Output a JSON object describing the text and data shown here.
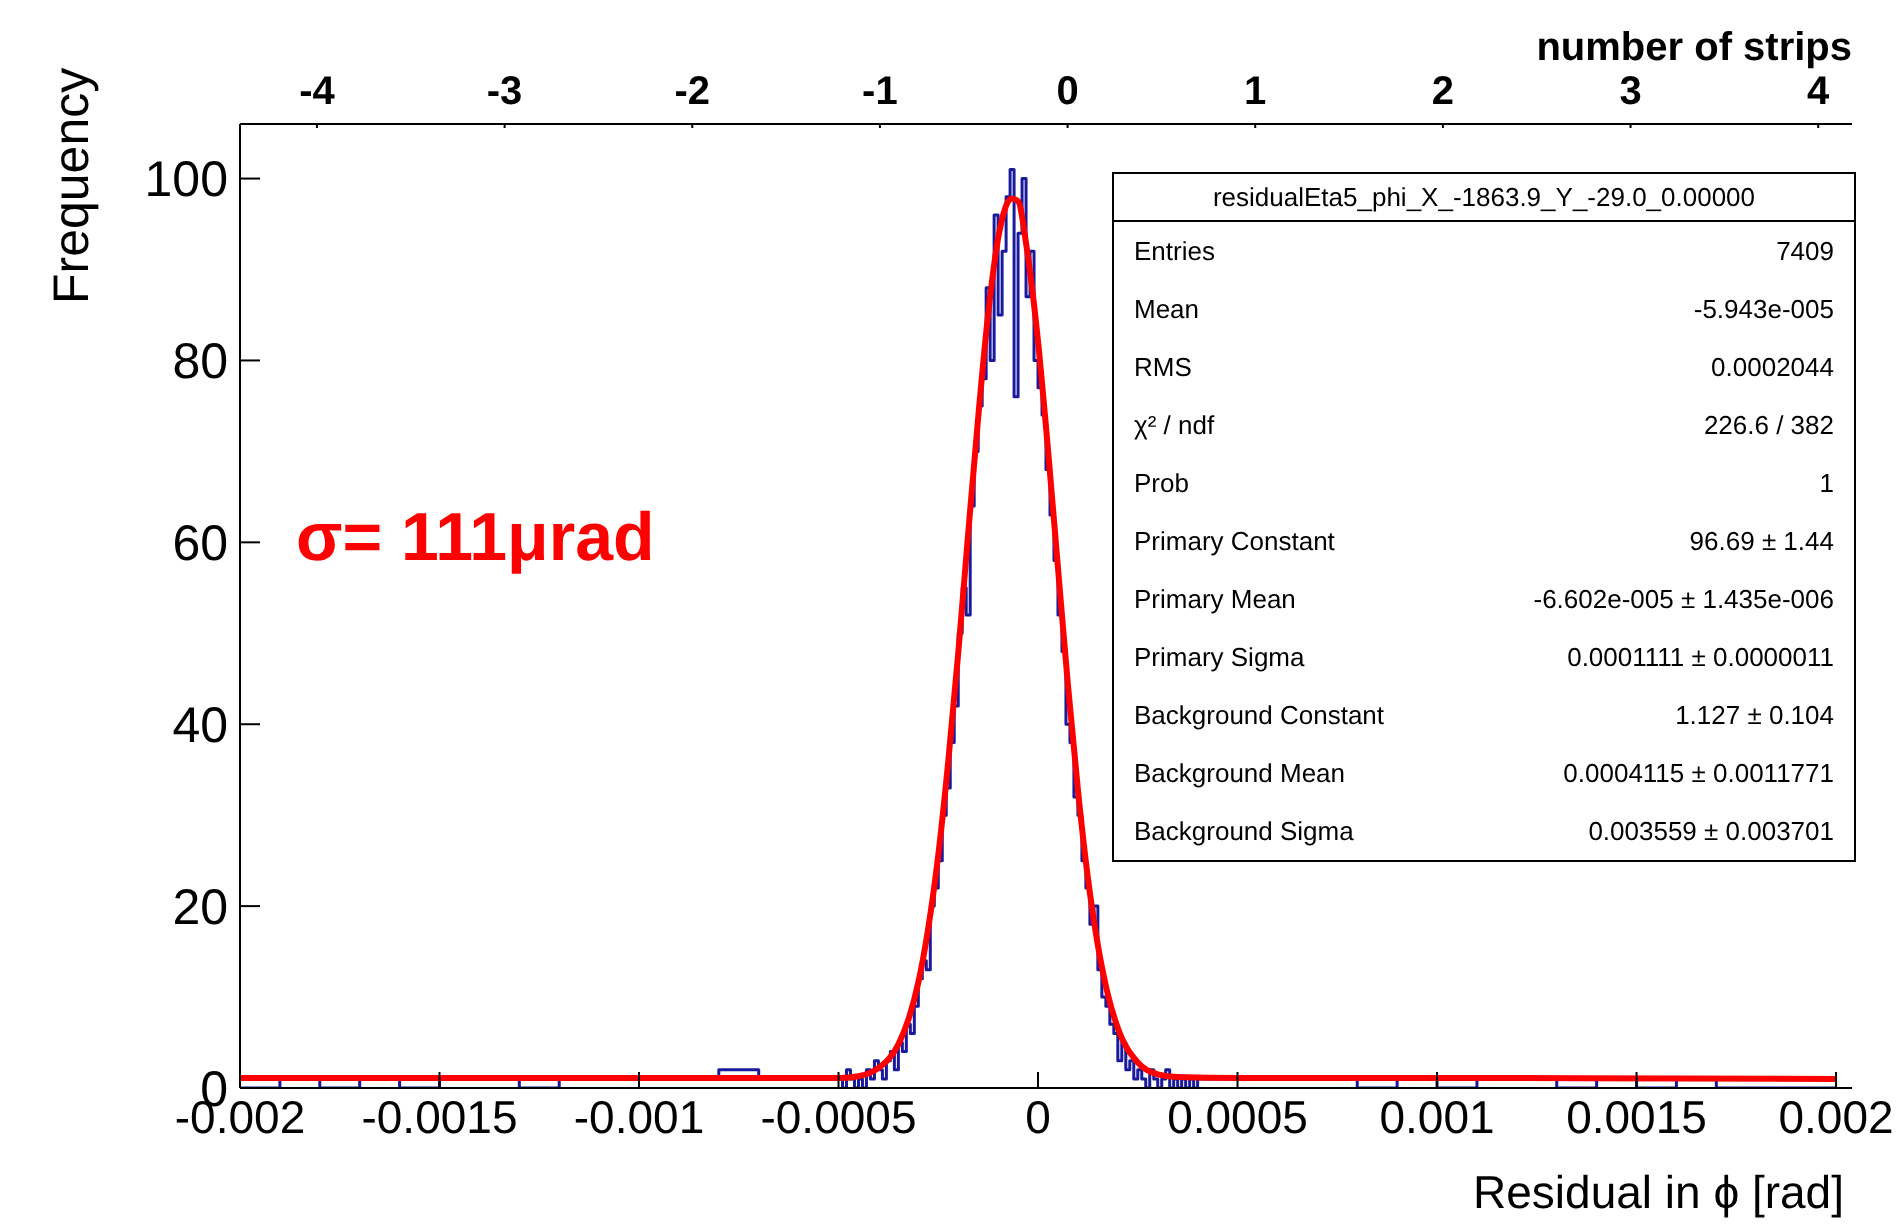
{
  "chart_data": {
    "type": "histogram",
    "xlabel": "Residual in ϕ [rad]",
    "ylabel": "Frequency",
    "x2label": "number of strips",
    "xlim": [
      -0.002,
      0.00204
    ],
    "xticks": [
      -0.002,
      -0.0015,
      -0.001,
      -0.0005,
      0,
      0.0005,
      0.001,
      0.0015,
      0.002
    ],
    "x2lim": [
      -4.41,
      4.18
    ],
    "x2ticks": [
      -4,
      -3,
      -2,
      -1,
      0,
      1,
      2,
      3,
      4
    ],
    "ylim": [
      0,
      106
    ],
    "yticks": [
      0,
      20,
      40,
      60,
      80,
      100
    ],
    "grid": false,
    "legend": false,
    "series": [
      {
        "color": "#1a1a9c",
        "bins": [
          -0.002,
          -0.0019,
          -0.0018,
          -0.0017,
          -0.0016,
          -0.0015,
          -0.0014,
          -0.0013,
          -0.0012,
          -0.0011,
          -0.001,
          -0.0009,
          -0.0008,
          -0.0007,
          -0.0006,
          -0.0005,
          -0.00049,
          -0.00048,
          -0.00047,
          -0.00046,
          -0.00045,
          -0.00044,
          -0.00043,
          -0.00042,
          -0.00041,
          -0.0004,
          -0.00039,
          -0.00038,
          -0.00037,
          -0.00036,
          -0.00035,
          -0.00034,
          -0.00033,
          -0.00032,
          -0.00031,
          -0.0003,
          -0.00029,
          -0.00028,
          -0.00027,
          -0.00026,
          -0.00025,
          -0.00024,
          -0.00023,
          -0.00022,
          -0.00021,
          -0.0002,
          -0.00019,
          -0.00018,
          -0.00017,
          -0.00016,
          -0.00015,
          -0.00014,
          -0.00013,
          -0.00012,
          -0.00011,
          -0.0001,
          -9e-05,
          -8e-05,
          -7e-05,
          -6e-05,
          -5e-05,
          -4e-05,
          -3e-05,
          -2e-05,
          -1e-05,
          0,
          1e-05,
          2e-05,
          3e-05,
          4e-05,
          5e-05,
          6e-05,
          7e-05,
          8e-05,
          9e-05,
          0.0001,
          0.00011,
          0.00012,
          0.00013,
          0.00014,
          0.00015,
          0.00016,
          0.00017,
          0.00018,
          0.00019,
          0.0002,
          0.00021,
          0.00022,
          0.00023,
          0.00024,
          0.00025,
          0.00026,
          0.00027,
          0.00028,
          0.00029,
          0.0003,
          0.00031,
          0.00032,
          0.00033,
          0.00034,
          0.00035,
          0.00036,
          0.00037,
          0.00038,
          0.00039,
          0.0004,
          0.0005,
          0.0006,
          0.0007,
          0.0008,
          0.0009,
          0.001,
          0.0011,
          0.0012,
          0.0013,
          0.0014,
          0.0015,
          0.0016,
          0.0017,
          0.0018,
          0.0019,
          0.002
        ],
        "values": [
          0,
          1,
          0,
          1,
          0,
          1,
          1,
          0,
          1,
          1,
          1,
          1,
          2,
          1,
          1,
          1,
          0,
          2,
          1,
          0,
          1,
          0,
          2,
          1,
          3,
          2,
          1,
          3,
          4,
          2,
          5,
          4,
          7,
          6,
          9,
          12,
          14,
          13,
          20,
          22,
          25,
          30,
          33,
          38,
          42,
          50,
          55,
          52,
          64,
          70,
          75,
          78,
          88,
          80,
          96,
          85,
          92,
          98,
          101,
          76,
          94,
          100,
          87,
          92,
          80,
          77,
          74,
          68,
          63,
          58,
          52,
          48,
          40,
          38,
          32,
          30,
          25,
          22,
          18,
          20,
          13,
          10,
          9,
          7,
          6,
          3,
          5,
          2,
          3,
          1,
          2,
          1,
          0,
          2,
          1,
          0,
          1,
          2,
          0,
          1,
          0,
          1,
          0,
          1,
          0,
          1,
          1,
          1,
          1,
          0,
          1,
          0,
          1,
          1,
          0,
          1,
          0,
          1,
          0,
          0,
          0
        ]
      },
      {
        "type": "line",
        "color": "#ff0000",
        "x": [
          -0.002,
          -0.001,
          -0.0005,
          -0.00045,
          -0.0004,
          -0.00035,
          -0.000325,
          -0.0003,
          -0.000275,
          -0.00025,
          -0.000225,
          -0.0002,
          -0.000175,
          -0.00015,
          -0.000125,
          -0.0001,
          -6.6e-05,
          -5e-05,
          -3e-05,
          -2.5e-05,
          0,
          2.5e-05,
          5e-05,
          7.5e-05,
          0.0001,
          0.000125,
          0.00015,
          0.000175,
          0.0002,
          0.00025,
          0.0003,
          0.00035,
          0.0005,
          0.001,
          0.002
        ],
        "values": [
          1.1,
          1.1,
          1.1,
          1.3,
          2.2,
          4.8,
          7.5,
          11.6,
          17.6,
          25.6,
          35.9,
          47.8,
          61,
          73.7,
          85.1,
          93.4,
          97.8,
          97.5,
          92.9,
          91.4,
          82.1,
          70.2,
          57.2,
          44.3,
          32.8,
          23.1,
          15.7,
          10.3,
          6.6,
          2.8,
          1.5,
          1.2,
          1.1,
          1.1,
          1
        ]
      }
    ],
    "annotations": [
      "σ= 111μrad",
      "residualEta5_phi_X_-1863.9_Y_-29.0_0.00000",
      "Entries\t7409",
      "Mean\t-5.943e-005",
      "RMS\t0.0002044",
      "χ² / ndf\t226.6 / 382",
      "Prob\t1",
      "Primary Constant\t96.69 ± 1.44",
      "Primary Mean\t-6.602e-005 ± 1.435e-006",
      "Primary Sigma\t0.0001111 ± 0.0000011",
      "Background Constant\t1.127 ± 0.104",
      "Background Mean\t0.0004115 ± 0.0011771",
      "Background Sigma\t0.003559 ± 0.003701"
    ]
  }
}
